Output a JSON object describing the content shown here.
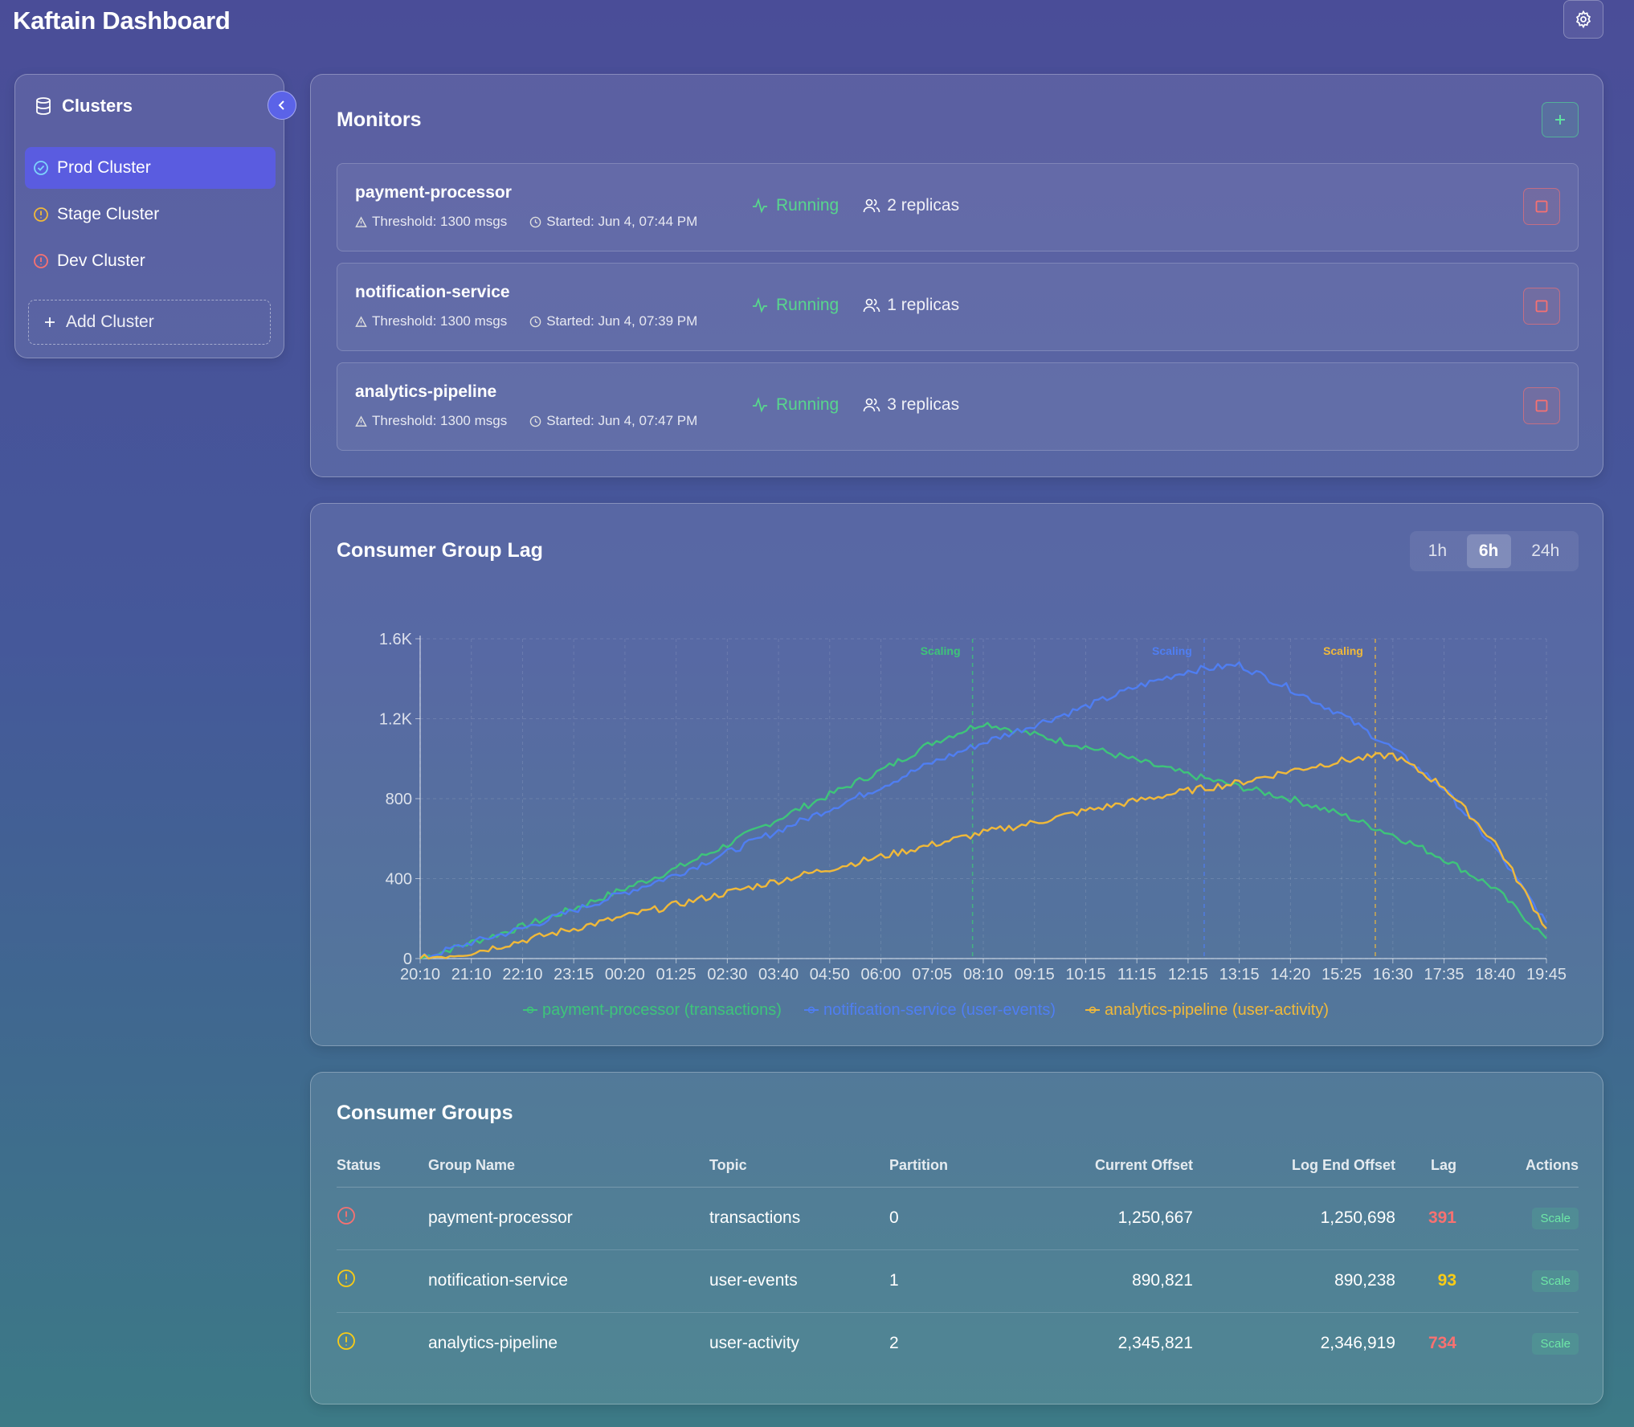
{
  "app": {
    "title": "Kaftain Dashboard",
    "settings_icon": "gear-icon"
  },
  "sidebar": {
    "title": "Clusters",
    "items": [
      {
        "label": "Prod Cluster",
        "status": "healthy",
        "active": true
      },
      {
        "label": "Stage Cluster",
        "status": "warning",
        "active": false
      },
      {
        "label": "Dev Cluster",
        "status": "error",
        "active": false
      }
    ],
    "add_label": "Add Cluster"
  },
  "monitors": {
    "title": "Monitors",
    "items": [
      {
        "name": "payment-processor",
        "threshold": "Threshold: 1300 msgs",
        "started": "Started: Jun 4, 07:44 PM",
        "status": "Running",
        "replicas": "2 replicas"
      },
      {
        "name": "notification-service",
        "threshold": "Threshold: 1300 msgs",
        "started": "Started: Jun 4, 07:39 PM",
        "status": "Running",
        "replicas": "1 replicas"
      },
      {
        "name": "analytics-pipeline",
        "threshold": "Threshold: 1300 msgs",
        "started": "Started: Jun 4, 07:47 PM",
        "status": "Running",
        "replicas": "3 replicas"
      }
    ]
  },
  "lag_chart": {
    "title": "Consumer Group Lag",
    "ranges": [
      "1h",
      "6h",
      "24h"
    ],
    "active_range": "6h"
  },
  "chart_data": {
    "type": "line",
    "title": "Consumer Group Lag",
    "xlabel": "",
    "ylabel": "",
    "ylim": [
      0,
      1600
    ],
    "yticks": [
      "0",
      "400",
      "800",
      "1.2K",
      "1.6K"
    ],
    "x": [
      "20:10",
      "21:10",
      "22:10",
      "23:15",
      "00:20",
      "01:25",
      "02:30",
      "03:40",
      "04:50",
      "06:00",
      "07:05",
      "08:10",
      "09:15",
      "10:15",
      "11:15",
      "12:15",
      "13:15",
      "14:20",
      "15:25",
      "16:30",
      "17:35",
      "18:40",
      "19:45"
    ],
    "grid": true,
    "legend_position": "bottom",
    "series": [
      {
        "name": "payment-processor (transactions)",
        "color": "#3ec47a",
        "values": [
          0,
          80,
          160,
          250,
          350,
          450,
          570,
          700,
          820,
          940,
          1080,
          1180,
          1120,
          1060,
          990,
          920,
          860,
          800,
          720,
          620,
          500,
          350,
          100
        ]
      },
      {
        "name": "notification-service (user-events)",
        "color": "#4f7ef2",
        "values": [
          0,
          80,
          150,
          240,
          330,
          420,
          530,
          640,
          750,
          860,
          980,
          1080,
          1170,
          1260,
          1360,
          1440,
          1470,
          1350,
          1220,
          1050,
          850,
          550,
          180
        ]
      },
      {
        "name": "analytics-pipeline (user-activity)",
        "color": "#f0b93a",
        "values": [
          0,
          30,
          90,
          150,
          210,
          270,
          330,
          390,
          450,
          510,
          570,
          630,
          680,
          740,
          790,
          840,
          880,
          940,
          990,
          1020,
          860,
          580,
          150
        ]
      }
    ],
    "annotations": [
      {
        "label": "Scaling",
        "x": "07:44",
        "color": "#3ec47a"
      },
      {
        "label": "Scaling",
        "x": "12:35",
        "color": "#4f7ef2"
      },
      {
        "label": "Scaling",
        "x": "16:10",
        "color": "#f0b93a"
      }
    ]
  },
  "consumer_groups": {
    "title": "Consumer Groups",
    "columns": [
      "Status",
      "Group Name",
      "Topic",
      "Partition",
      "Current Offset",
      "Log End Offset",
      "Lag",
      "Actions"
    ],
    "rows": [
      {
        "status": "error",
        "group": "payment-processor",
        "topic": "transactions",
        "partition": "0",
        "current": "1,250,667",
        "end": "1,250,698",
        "lag": "391",
        "lag_level": "high",
        "action": "Scale"
      },
      {
        "status": "warning",
        "group": "notification-service",
        "topic": "user-events",
        "partition": "1",
        "current": "890,821",
        "end": "890,238",
        "lag": "93",
        "lag_level": "medium",
        "action": "Scale"
      },
      {
        "status": "warning",
        "group": "analytics-pipeline",
        "topic": "user-activity",
        "partition": "2",
        "current": "2,345,821",
        "end": "2,346,919",
        "lag": "734",
        "lag_level": "high",
        "action": "Scale"
      }
    ]
  },
  "colors": {
    "accent": "#5a5ce0",
    "running": "#58d68d",
    "danger": "#f87171",
    "warning": "#facc15"
  }
}
